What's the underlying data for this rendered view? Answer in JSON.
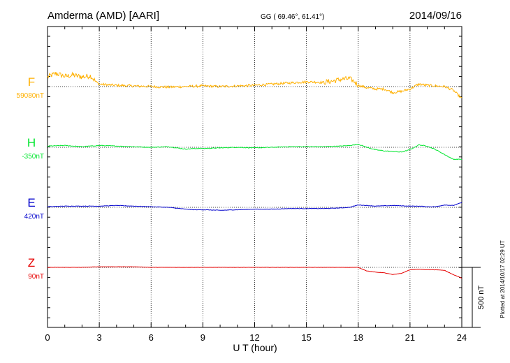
{
  "header": {
    "station": "Amderma (AMD)  [AARI]",
    "coords": "GG ( 69.46°,  61.41°)",
    "date": "2014/09/16"
  },
  "footer": {
    "plotted": "Plotted at 2014/10/17 02:29 UT"
  },
  "colors": {
    "F": "#ffb000",
    "H": "#00e62e",
    "E": "#0000cc",
    "Z": "#e60000"
  },
  "chart_data": {
    "type": "line",
    "title": "Amderma (AMD)  [AARI]",
    "xlabel": "U T (hour)",
    "xlim": [
      0,
      24
    ],
    "x_ticks": [
      0,
      3,
      6,
      9,
      12,
      15,
      18,
      21,
      24
    ],
    "x_tick_labels": [
      "0",
      "3",
      "6",
      "9",
      "12",
      "15",
      "18",
      "21",
      "24"
    ],
    "grid": "vertical dotted at every 3 hours",
    "scale_bar": {
      "value": 500,
      "label": "500 nT"
    },
    "series": [
      {
        "name": "F",
        "baseline_label": "59080nT",
        "baseline": 59080,
        "x": [
          0,
          0.5,
          1,
          1.5,
          2,
          2.5,
          2.8,
          3,
          4,
          5,
          6,
          7,
          8,
          9,
          10,
          11,
          12,
          13,
          14,
          15,
          16,
          16.5,
          17,
          17.5,
          17.8,
          18,
          18.5,
          19,
          19.5,
          20,
          20.5,
          21,
          21.5,
          22,
          22.5,
          23,
          23.5,
          24
        ],
        "y": [
          80,
          110,
          85,
          95,
          80,
          90,
          40,
          20,
          10,
          5,
          0,
          -5,
          0,
          5,
          0,
          5,
          10,
          20,
          30,
          40,
          35,
          45,
          60,
          65,
          40,
          10,
          -10,
          -20,
          -20,
          -50,
          -40,
          -20,
          20,
          10,
          5,
          0,
          -30,
          -100
        ]
      },
      {
        "name": "H",
        "baseline_label": "-350nT",
        "baseline": -350,
        "x": [
          0,
          1,
          2,
          3,
          4,
          5,
          6,
          7,
          8,
          8.5,
          9,
          10,
          11,
          12,
          13,
          14,
          15,
          16,
          17,
          17.5,
          18,
          18.5,
          19,
          19.5,
          20,
          20.5,
          21,
          21.5,
          22,
          22.5,
          23,
          23.5,
          24
        ],
        "y": [
          10,
          15,
          5,
          15,
          10,
          5,
          0,
          5,
          -15,
          -10,
          -10,
          -5,
          0,
          -5,
          0,
          5,
          5,
          5,
          10,
          15,
          25,
          0,
          -20,
          -30,
          -35,
          -40,
          -20,
          20,
          10,
          -20,
          -60,
          -100,
          -100
        ]
      },
      {
        "name": "E",
        "baseline_label": "420nT",
        "baseline": 420,
        "x": [
          0,
          1,
          2,
          3,
          4,
          5,
          6,
          7,
          8,
          8.5,
          9,
          10,
          11,
          12,
          13,
          14,
          15,
          16,
          17,
          17.5,
          18,
          18.5,
          19,
          20,
          21,
          21.5,
          22,
          22.5,
          23,
          23.5,
          24
        ],
        "y": [
          5,
          10,
          10,
          10,
          15,
          10,
          5,
          0,
          -15,
          -20,
          -20,
          -25,
          -20,
          -15,
          -15,
          -10,
          -10,
          -10,
          -5,
          0,
          20,
          15,
          10,
          15,
          10,
          10,
          5,
          5,
          20,
          15,
          40
        ]
      },
      {
        "name": "Z",
        "baseline_label": "90nT",
        "baseline": 90,
        "x": [
          0,
          1,
          2,
          3,
          4,
          5,
          6,
          7,
          8,
          9,
          10,
          11,
          12,
          13,
          14,
          15,
          16,
          17,
          18,
          18.5,
          19,
          19.5,
          20,
          20.5,
          21,
          21.5,
          22,
          22.5,
          23,
          23.5,
          24
        ],
        "y": [
          0,
          0,
          0,
          5,
          5,
          5,
          0,
          0,
          0,
          0,
          0,
          0,
          0,
          0,
          0,
          0,
          0,
          0,
          0,
          -30,
          -40,
          -45,
          -60,
          -50,
          -20,
          -15,
          -20,
          -20,
          -25,
          -60,
          -90
        ]
      }
    ]
  }
}
